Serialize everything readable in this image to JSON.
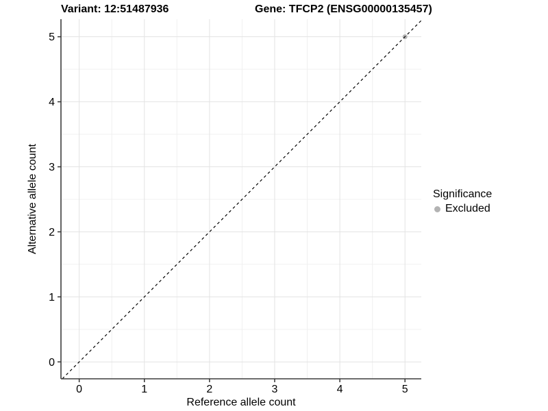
{
  "titles": {
    "variant": "Variant: 12:51487936",
    "gene": "Gene: TFCP2 (ENSG00000135457)"
  },
  "legend": {
    "title": "Significance",
    "items": [
      {
        "label": "Excluded",
        "color": "#B3B3B3"
      }
    ]
  },
  "chart_data": {
    "type": "scatter",
    "xlabel": "Reference allele count",
    "ylabel": "Alternative allele count",
    "xticks": [
      0,
      1,
      2,
      3,
      4,
      5
    ],
    "yticks": [
      0,
      1,
      2,
      3,
      4,
      5
    ],
    "x_minor": [
      0.5,
      1.5,
      2.5,
      3.5,
      4.5
    ],
    "y_minor": [
      0.5,
      1.5,
      2.5,
      3.5,
      4.5
    ],
    "xlim": [
      -0.28,
      5.25
    ],
    "ylim": [
      -0.26,
      5.27
    ],
    "grid": true,
    "legend_position": "right",
    "points": [
      {
        "x": 5,
        "y": 5,
        "significance": "Excluded",
        "color": "#B3B3B3"
      }
    ],
    "reference_line": {
      "slope": 1,
      "intercept": 0,
      "style": "dashed",
      "color": "#000000"
    }
  },
  "colors": {
    "background": "#FFFFFF",
    "grid_major": "#E3E3E3",
    "grid_minor": "#F0F0F0",
    "axis": "#3C3C3C",
    "tick": "#333333",
    "text": "#000000",
    "excluded": "#B3B3B3"
  }
}
